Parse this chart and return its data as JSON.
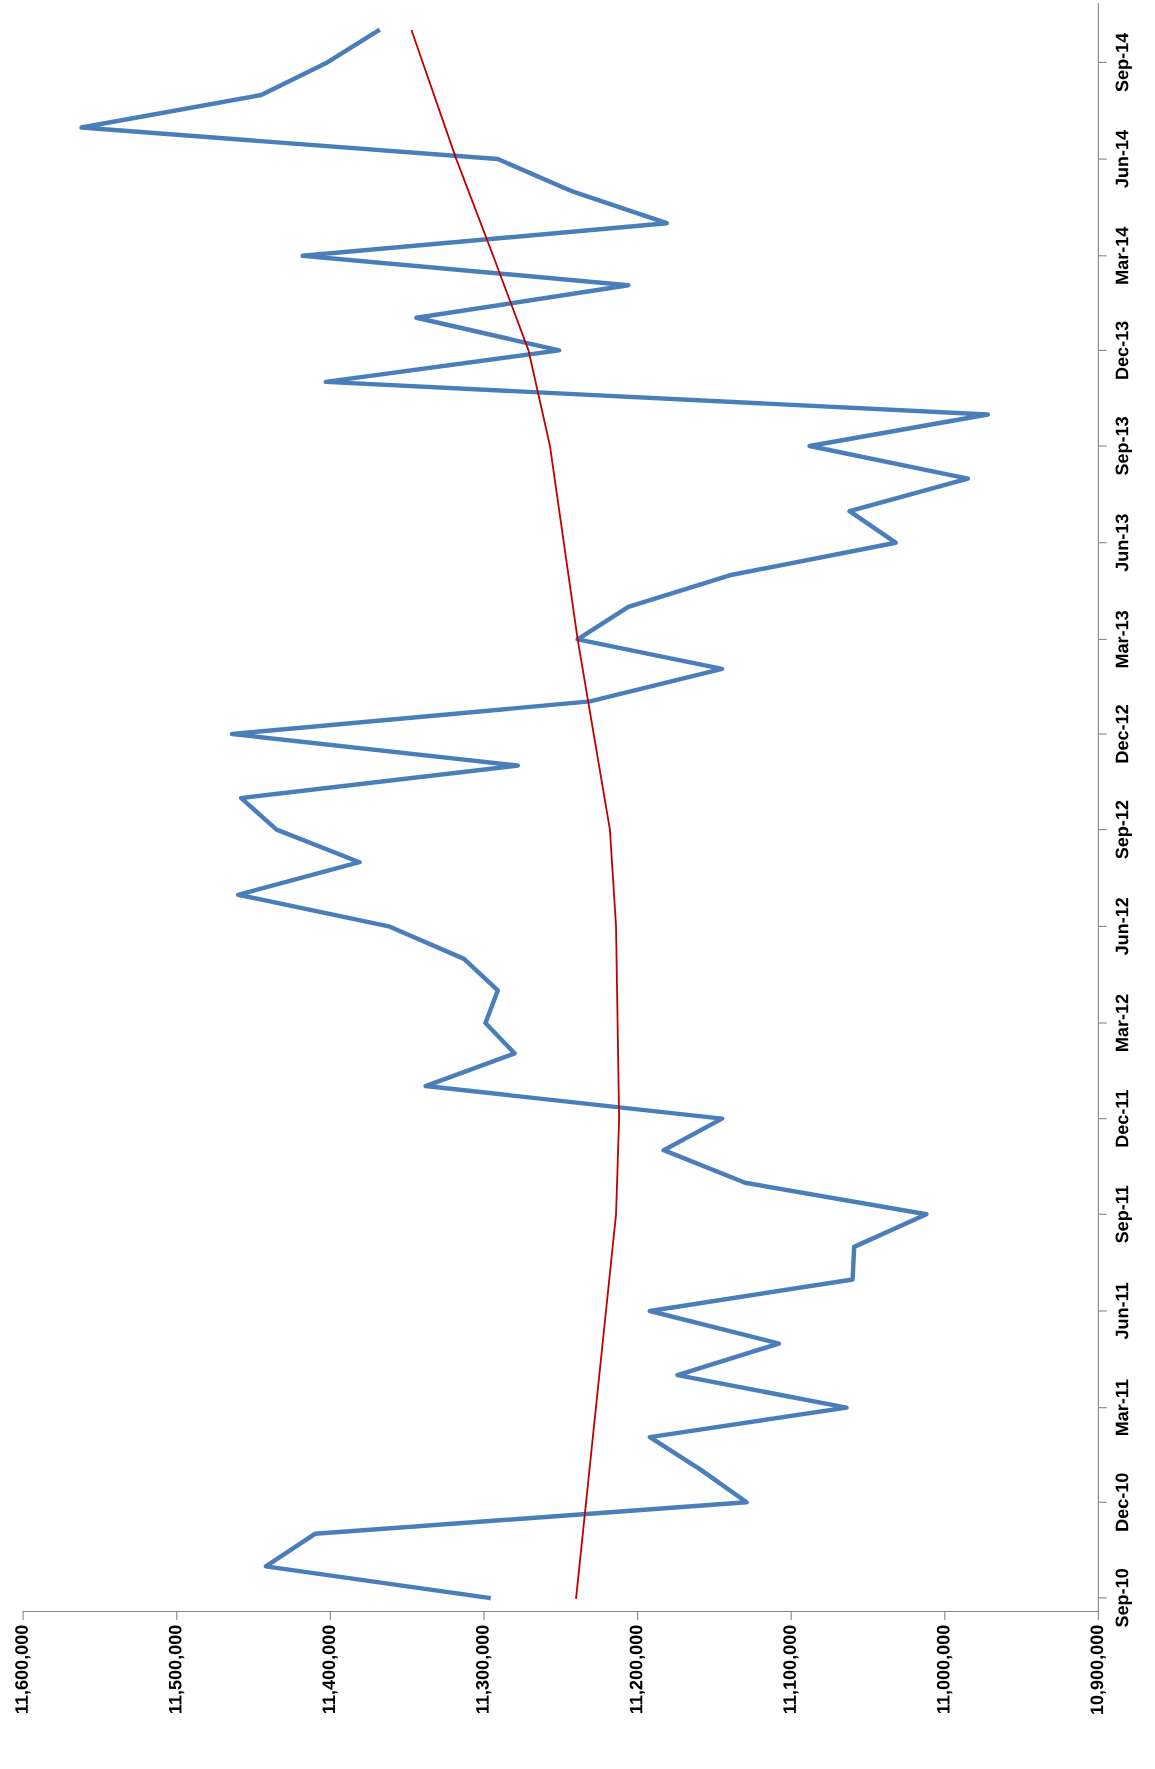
{
  "chart_data": {
    "type": "line",
    "orientation": "horizontal",
    "x": [
      "2010-09",
      "2010-10",
      "2010-11",
      "2010-12",
      "2011-01",
      "2011-02",
      "2011-03",
      "2011-04",
      "2011-05",
      "2011-06",
      "2011-07",
      "2011-08",
      "2011-09",
      "2011-10",
      "2011-11",
      "2011-12",
      "2012-01",
      "2012-02",
      "2012-03",
      "2012-04",
      "2012-05",
      "2012-06",
      "2012-07",
      "2012-08",
      "2012-09",
      "2012-10",
      "2012-11",
      "2012-12",
      "2013-01",
      "2013-02",
      "2013-03",
      "2013-04",
      "2013-05",
      "2013-06",
      "2013-07",
      "2013-08",
      "2013-09",
      "2013-10",
      "2013-11",
      "2013-12",
      "2014-01",
      "2014-02",
      "2014-03",
      "2014-04",
      "2014-05",
      "2014-06",
      "2014-07",
      "2014-08",
      "2014-09",
      "2014-10"
    ],
    "series": [
      {
        "color": "#4a7ebb",
        "values": [
          11297000,
          11442000,
          11410000,
          11129000,
          11159000,
          11192000,
          11064000,
          11174000,
          11108000,
          11192000,
          11060000,
          11059000,
          11012000,
          11130000,
          11183000,
          11145000,
          11338000,
          11280000,
          11299000,
          11291000,
          11313000,
          11362000,
          11460000,
          11381000,
          11435000,
          11458000,
          11278000,
          11464000,
          11231000,
          11145000,
          11239000,
          11206000,
          11140000,
          11032000,
          11062000,
          10985000,
          11088000,
          10972000,
          11403000,
          11251000,
          11344000,
          11206000,
          11418000,
          11181000,
          11242000,
          11291000,
          11562000,
          11445000,
          11402000,
          11369000
        ]
      },
      {
        "type": "line",
        "color": "#c00000",
        "x": [
          "2010-09",
          "2011-09",
          "2011-12",
          "2012-06",
          "2012-09",
          "2013-03",
          "2013-09",
          "2013-12",
          "2014-03",
          "2014-06",
          "2014-10"
        ],
        "values": [
          11240000,
          11214000,
          11212000,
          11214000,
          11218000,
          11239000,
          11257000,
          11271000,
          11294000,
          11318000,
          11347000
        ]
      }
    ],
    "xlim": [
      11600000,
      10900000
    ],
    "xticks": [
      {
        "value": 11600000,
        "label": "11,600,000"
      },
      {
        "value": 11500000,
        "label": "11,500,000"
      },
      {
        "value": 11400000,
        "label": "11,400,000"
      },
      {
        "value": 11300000,
        "label": "11,300,000"
      },
      {
        "value": 11200000,
        "label": "11,200,000"
      },
      {
        "value": 11100000,
        "label": "11,100,000"
      },
      {
        "value": 11000000,
        "label": "11,000,000"
      },
      {
        "value": 10900000,
        "label": "10,900,000"
      }
    ],
    "ylim": [
      "2010-08-19",
      "2014-10-27"
    ],
    "yticks": [
      {
        "value": "2010-09",
        "label": "Sep-10"
      },
      {
        "value": "2010-12",
        "label": "Dec-10"
      },
      {
        "value": "2011-03",
        "label": "Mar-11"
      },
      {
        "value": "2011-06",
        "label": "Jun-11"
      },
      {
        "value": "2011-09",
        "label": "Sep-11"
      },
      {
        "value": "2011-12",
        "label": "Dec-11"
      },
      {
        "value": "2012-03",
        "label": "Mar-12"
      },
      {
        "value": "2012-06",
        "label": "Jun-12"
      },
      {
        "value": "2012-09",
        "label": "Sep-12"
      },
      {
        "value": "2012-12",
        "label": "Dec-12"
      },
      {
        "value": "2013-03",
        "label": "Mar-13"
      },
      {
        "value": "2013-06",
        "label": "Jun-13"
      },
      {
        "value": "2013-09",
        "label": "Sep-13"
      },
      {
        "value": "2013-12",
        "label": "Dec-13"
      },
      {
        "value": "2014-03",
        "label": "Mar-14"
      },
      {
        "value": "2014-06",
        "label": "Jun-14"
      },
      {
        "value": "2014-09",
        "label": "Sep-14"
      }
    ],
    "grid": false,
    "legend": false,
    "marker": "none",
    "line_style": "solid"
  }
}
